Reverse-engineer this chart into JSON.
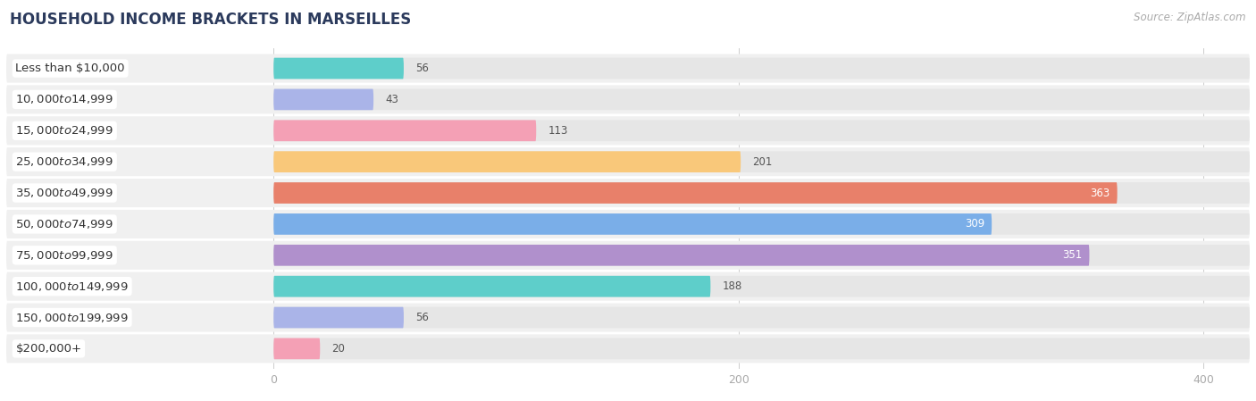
{
  "title": "HOUSEHOLD INCOME BRACKETS IN MARSEILLES",
  "source": "Source: ZipAtlas.com",
  "categories": [
    "Less than $10,000",
    "$10,000 to $14,999",
    "$15,000 to $24,999",
    "$25,000 to $34,999",
    "$35,000 to $49,999",
    "$50,000 to $74,999",
    "$75,000 to $99,999",
    "$100,000 to $149,999",
    "$150,000 to $199,999",
    "$200,000+"
  ],
  "values": [
    56,
    43,
    113,
    201,
    363,
    309,
    351,
    188,
    56,
    20
  ],
  "bar_colors": [
    "#5ececa",
    "#aab4e8",
    "#f4a0b5",
    "#f9c87a",
    "#e8806a",
    "#7aaee8",
    "#b090cc",
    "#5ececa",
    "#aab4e8",
    "#f4a0b5"
  ],
  "background_color": "#ffffff",
  "row_bg_color": "#f0f0f0",
  "bar_bg_color": "#e6e6e6",
  "xlim_left": -115,
  "xlim_right": 420,
  "data_max": 400,
  "xticks": [
    0,
    200,
    400
  ],
  "title_fontsize": 12,
  "label_fontsize": 9.5,
  "value_fontsize": 8.5,
  "title_color": "#2b3a5c",
  "label_color": "#333333",
  "value_color_dark": "#555555",
  "value_color_light": "#ffffff",
  "source_color": "#aaaaaa"
}
